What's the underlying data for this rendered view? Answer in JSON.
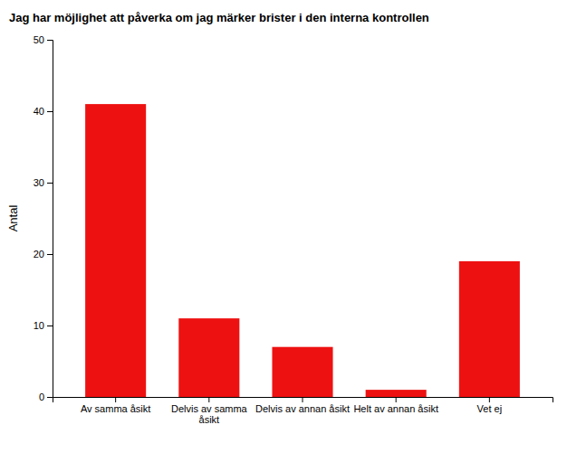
{
  "chart_data": {
    "type": "bar",
    "title": "Jag har möjlighet att påverka om jag märker brister i den interna kontrollen",
    "categories": [
      "Av samma åsikt",
      "Delvis av samma\nåsikt",
      "Delvis av annan åsikt",
      "Helt av annan åsikt",
      "Vet ej"
    ],
    "values": [
      41,
      11,
      7,
      1,
      19
    ],
    "color": "#ee1111",
    "ylabel": "Antal",
    "ylim": [
      0,
      50
    ],
    "yticks": [
      0,
      10,
      20,
      30,
      40,
      50
    ],
    "grid": false
  }
}
